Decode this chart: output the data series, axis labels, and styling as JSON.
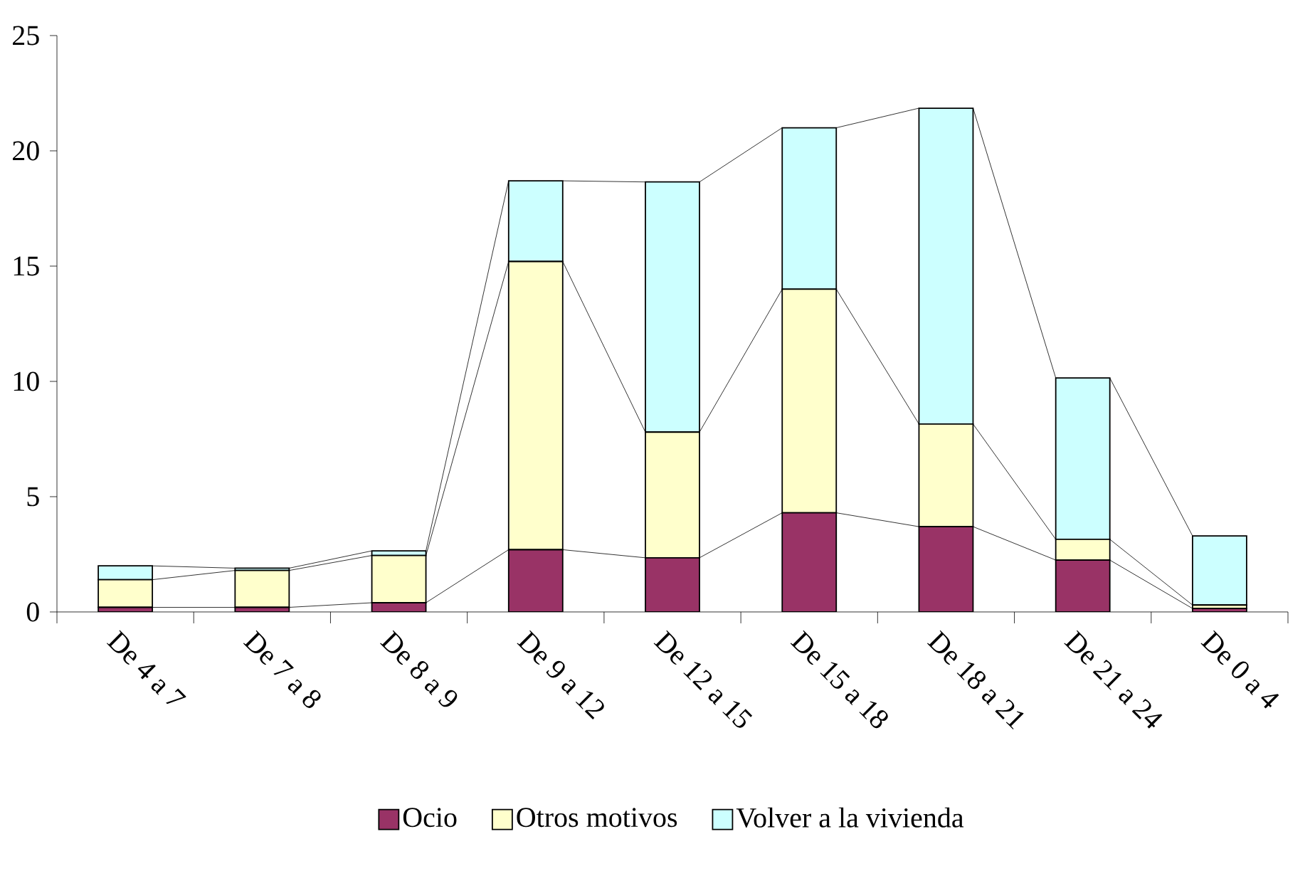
{
  "chart_data": {
    "type": "bar",
    "stacked": true,
    "categories": [
      "De 4 a 7",
      "De 7 a 8",
      "De 8 a 9",
      "De 9 a 12",
      "De 12 a 15",
      "De 15 a 18",
      "De 18 a 21",
      "De 21 a 24",
      "De 0 a 4"
    ],
    "series": [
      {
        "name": "Ocio",
        "color": "#993366",
        "values": [
          0.2,
          0.2,
          0.4,
          2.7,
          2.35,
          4.3,
          3.7,
          2.25,
          0.15
        ]
      },
      {
        "name": "Otros motivos",
        "color": "#ffffcc",
        "values": [
          1.2,
          1.6,
          2.05,
          12.5,
          5.45,
          9.7,
          4.45,
          0.9,
          0.15
        ]
      },
      {
        "name": "Volver a la vivienda",
        "color": "#ccffff",
        "values": [
          0.6,
          0.1,
          0.2,
          3.5,
          10.85,
          7.0,
          13.7,
          7.0,
          3.0
        ]
      }
    ],
    "ylim": [
      0,
      25
    ],
    "yticks": [
      0,
      5,
      10,
      15,
      20,
      25
    ],
    "grid": false,
    "legend": "bottom"
  }
}
